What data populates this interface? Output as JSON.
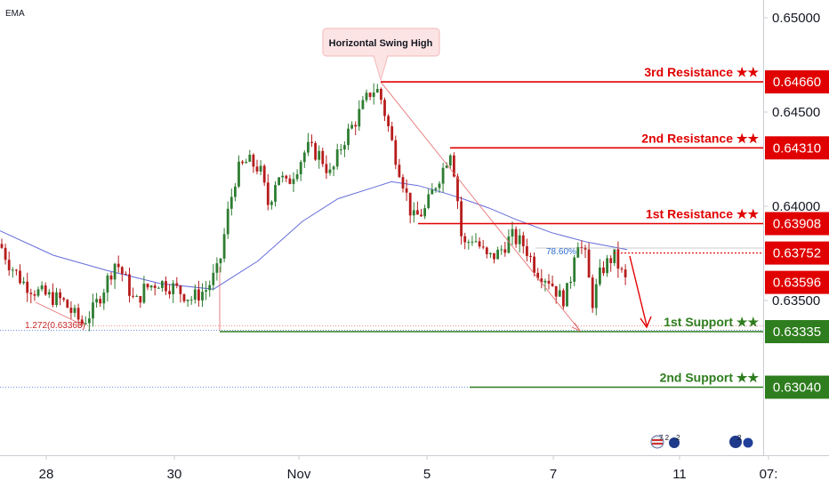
{
  "indicator_label": "EMA",
  "callout": {
    "text": "Horizontal Swing High"
  },
  "fib_label": "78.60%",
  "ext_label": "1.272(0.63363)",
  "colors": {
    "up": "#2e7d32",
    "down": "#b71c1c",
    "resistance": "#e00000",
    "support": "#2e7d1e",
    "ema": "#4a52d6",
    "axis_text": "#131722",
    "callout_bg": "#fde4e4",
    "fib_text": "#2f6fd0",
    "dotted_blue": "#3f6fd8"
  },
  "chart_data": {
    "type": "candlestick",
    "x_ticks": [
      "28",
      "30",
      "Nov",
      "5",
      "7",
      "11",
      "07:"
    ],
    "y_ticks": [
      "0.65000",
      "0.64500",
      "0.64000",
      "0.63500"
    ],
    "ylim": [
      0.6283,
      0.652
    ],
    "levels": [
      {
        "label": "3rd Resistance",
        "stars": "★★",
        "value": "0.64660",
        "y": 0.6466,
        "kind": "resistance"
      },
      {
        "label": "2nd Resistance",
        "stars": "★★",
        "value": "0.64310",
        "y": 0.6431,
        "kind": "resistance"
      },
      {
        "label": "1st Resistance",
        "stars": "★★",
        "value": "0.63908",
        "y": 0.63908,
        "kind": "resistance"
      },
      {
        "label": "1st Support",
        "stars": "★★",
        "value": "0.63335",
        "y": 0.63335,
        "kind": "support"
      },
      {
        "label": "2nd Support",
        "stars": "★★",
        "value": "0.63040",
        "y": 0.6304,
        "kind": "support"
      }
    ],
    "current_price": {
      "value": "0.63596",
      "y": 0.63596
    },
    "fib_price": {
      "value": "0.63752",
      "y": 0.63752
    },
    "ema": [
      [
        0,
        0.6387
      ],
      [
        60,
        0.6374
      ],
      [
        120,
        0.6366
      ],
      [
        180,
        0.6359
      ],
      [
        240,
        0.6356
      ],
      [
        290,
        0.6371
      ],
      [
        340,
        0.6392
      ],
      [
        380,
        0.6404
      ],
      [
        420,
        0.641
      ],
      [
        440,
        0.6413
      ],
      [
        470,
        0.6411
      ],
      [
        500,
        0.6407
      ],
      [
        520,
        0.6404
      ],
      [
        550,
        0.6399
      ],
      [
        580,
        0.6393
      ],
      [
        620,
        0.6386
      ],
      [
        660,
        0.6381
      ],
      [
        705,
        0.6377
      ]
    ],
    "price_path": [
      [
        0,
        0.638
      ],
      [
        10,
        0.637
      ],
      [
        25,
        0.636
      ],
      [
        40,
        0.6355
      ],
      [
        55,
        0.6352
      ],
      [
        70,
        0.635
      ],
      [
        82,
        0.6343
      ],
      [
        92,
        0.6338
      ],
      [
        105,
        0.6345
      ],
      [
        118,
        0.6358
      ],
      [
        130,
        0.6371
      ],
      [
        140,
        0.6362
      ],
      [
        152,
        0.6348
      ],
      [
        162,
        0.6356
      ],
      [
        178,
        0.636
      ],
      [
        195,
        0.6357
      ],
      [
        215,
        0.6351
      ],
      [
        232,
        0.6356
      ],
      [
        246,
        0.6367
      ],
      [
        256,
        0.6396
      ],
      [
        266,
        0.6418
      ],
      [
        278,
        0.6424
      ],
      [
        292,
        0.642
      ],
      [
        302,
        0.64
      ],
      [
        312,
        0.6418
      ],
      [
        322,
        0.6411
      ],
      [
        335,
        0.6422
      ],
      [
        345,
        0.6431
      ],
      [
        360,
        0.6427
      ],
      [
        372,
        0.6416
      ],
      [
        385,
        0.6434
      ],
      [
        398,
        0.6444
      ],
      [
        410,
        0.6455
      ],
      [
        418,
        0.6462
      ],
      [
        426,
        0.6461
      ],
      [
        434,
        0.6447
      ],
      [
        442,
        0.6431
      ],
      [
        452,
        0.6415
      ],
      [
        464,
        0.6393
      ],
      [
        478,
        0.6398
      ],
      [
        490,
        0.6412
      ],
      [
        500,
        0.6422
      ],
      [
        506,
        0.6431
      ],
      [
        512,
        0.6415
      ],
      [
        520,
        0.6378
      ],
      [
        532,
        0.6384
      ],
      [
        548,
        0.6372
      ],
      [
        560,
        0.6375
      ],
      [
        575,
        0.6384
      ],
      [
        590,
        0.6379
      ],
      [
        603,
        0.6366
      ],
      [
        618,
        0.6361
      ],
      [
        632,
        0.635
      ],
      [
        640,
        0.6357
      ],
      [
        648,
        0.6384
      ],
      [
        658,
        0.6373
      ],
      [
        666,
        0.6349
      ],
      [
        676,
        0.6366
      ],
      [
        690,
        0.6374
      ],
      [
        700,
        0.6363
      ],
      [
        706,
        0.6358
      ]
    ]
  },
  "flags": {
    "us_count": "7 2",
    "us_count2": "2",
    "au_count": "2"
  }
}
